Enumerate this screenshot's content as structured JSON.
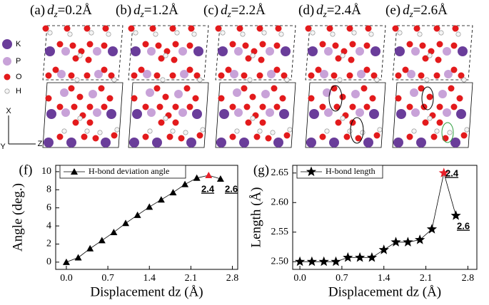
{
  "structures": {
    "panels": [
      {
        "letter": "(a)",
        "var": "d",
        "sub": "z",
        "rest": "=0.2Å"
      },
      {
        "letter": "(b)",
        "var": "d",
        "sub": "z",
        "rest": "=1.2Å"
      },
      {
        "letter": "(c)",
        "var": "d",
        "sub": "z",
        "rest": "=2.2Å"
      },
      {
        "letter": "(d)",
        "var": "d",
        "sub": "z",
        "rest": "=2.4Å"
      },
      {
        "letter": "(e)",
        "var": "d",
        "sub": "z",
        "rest": "=2.6Å"
      }
    ],
    "legend": [
      "K",
      "P",
      "O",
      "H"
    ],
    "axes": [
      "X",
      "Y",
      "Z"
    ]
  },
  "chart_data": [
    {
      "type": "line",
      "panel": "(f)",
      "x": [
        0,
        0.2,
        0.4,
        0.6,
        0.8,
        1.0,
        1.2,
        1.4,
        1.6,
        1.8,
        2.0,
        2.2,
        2.4,
        2.6
      ],
      "series": [
        {
          "name": "H-bond deviation angle",
          "color": "#000000",
          "marker": "triangle",
          "values": [
            0,
            0.5,
            1.5,
            2.4,
            3.3,
            4.3,
            5.2,
            6.1,
            6.9,
            7.7,
            8.6,
            9.3,
            9.6,
            9.2
          ],
          "marker_colors": [
            "#000000",
            "#000000",
            "#000000",
            "#000000",
            "#000000",
            "#000000",
            "#000000",
            "#000000",
            "#000000",
            "#000000",
            "#000000",
            "#000000",
            "#e8202a",
            "#000000"
          ]
        }
      ],
      "xlabel": "Displacement dz (Å)",
      "ylabel": "Angle (deg.)",
      "xlim": [
        -0.18,
        2.89
      ],
      "ylim": [
        -0.8,
        10.7
      ],
      "xticks": [
        {
          "value": 0,
          "label": "0.0"
        },
        0.7,
        1.4,
        2.1,
        2.8
      ],
      "yticks": [
        0,
        2,
        4,
        6,
        8,
        10
      ],
      "annotations": [
        "2.4",
        "2.6"
      ]
    },
    {
      "type": "line",
      "panel": "(g)",
      "x": [
        0,
        0.2,
        0.4,
        0.6,
        0.8,
        1.0,
        1.2,
        1.4,
        1.6,
        1.8,
        2.0,
        2.2,
        2.4,
        2.6
      ],
      "series": [
        {
          "name": "H-bond length",
          "color": "#000000",
          "marker": "star",
          "values": [
            2.5,
            2.5,
            2.5,
            2.5,
            2.507,
            2.507,
            2.507,
            2.52,
            2.533,
            2.533,
            2.537,
            2.555,
            2.65,
            2.578
          ],
          "marker_colors": [
            "#000000",
            "#000000",
            "#000000",
            "#000000",
            "#000000",
            "#000000",
            "#000000",
            "#000000",
            "#000000",
            "#000000",
            "#000000",
            "#000000",
            "#e8202a",
            "#000000"
          ]
        }
      ],
      "xlabel": "Displacement dz (Å)",
      "ylabel": "Length (Å)",
      "xlim": [
        -0.12,
        2.95
      ],
      "ylim": [
        2.487,
        2.663
      ],
      "xticks": [
        {
          "value": 0,
          "label": "0.0"
        },
        0.7,
        1.4,
        2.1,
        2.8
      ],
      "yticks": [
        {
          "value": 2.5,
          "label": "2.50"
        },
        2.55,
        {
          "value": 2.6,
          "label": "2.60"
        },
        2.65
      ],
      "annotations": [
        "2.4",
        "2.6"
      ]
    }
  ]
}
